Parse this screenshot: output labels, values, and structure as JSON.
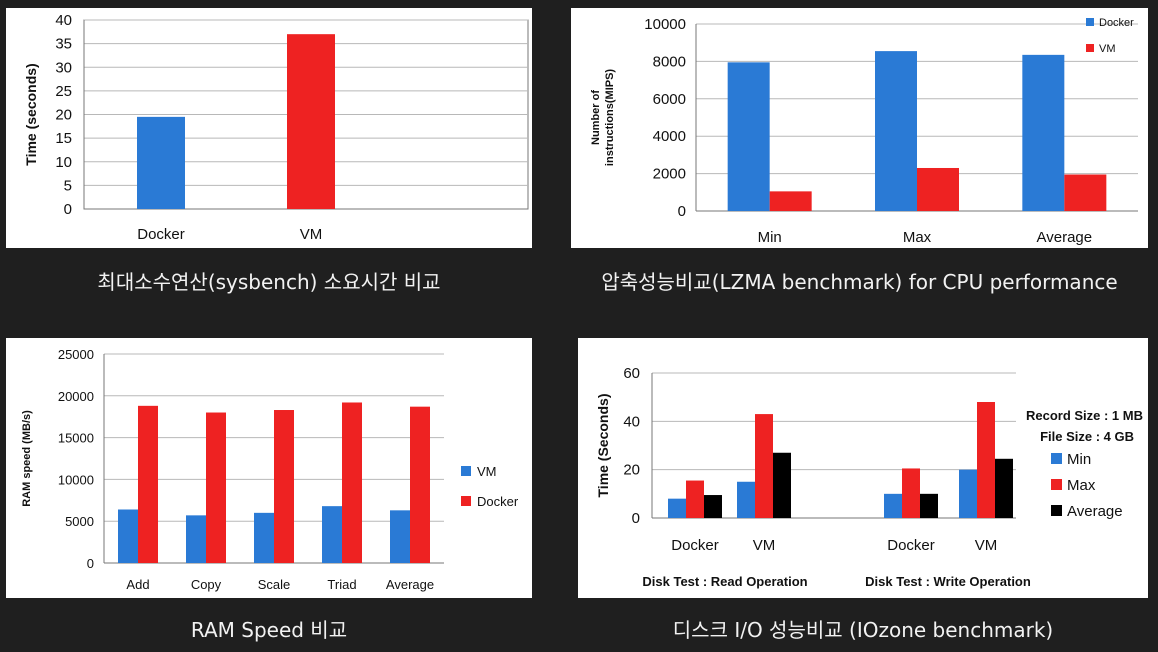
{
  "chart_data": [
    {
      "type": "bar",
      "title": "",
      "caption": "최대소수연산(sysbench) 소요시간 비교",
      "ylabel": "Time (seconds)",
      "xlabel": "",
      "ylim": [
        0,
        40
      ],
      "yticks": [
        "0",
        "5",
        "10",
        "15",
        "20",
        "25",
        "30",
        "35",
        "40"
      ],
      "categories": [
        "Docker",
        "VM"
      ],
      "values": [
        19.5,
        37
      ],
      "colors": [
        "#2a7ad5",
        "#ee2222"
      ],
      "grid": true
    },
    {
      "type": "bar",
      "title": "",
      "caption": "압축성능비교(LZMA benchmark) for CPU performance",
      "ylabel_lines": [
        "Number of",
        "instructions(MIPS)"
      ],
      "xlabel": "",
      "ylim": [
        0,
        10000
      ],
      "yticks": [
        "0",
        "2000",
        "4000",
        "6000",
        "8000",
        "10000"
      ],
      "categories": [
        "Min",
        "Max",
        "Average"
      ],
      "series": [
        {
          "name": "Docker",
          "color": "#2a7ad5",
          "values": [
            7950,
            8550,
            8350
          ]
        },
        {
          "name": "VM",
          "color": "#ee2222",
          "values": [
            1050,
            2300,
            1950
          ]
        }
      ],
      "legend_position": "top-right",
      "grid": true
    },
    {
      "type": "bar",
      "title": "",
      "caption": "RAM Speed 비교",
      "ylabel": "RAM speed (MB/s)",
      "xlabel": "",
      "ylim": [
        0,
        25000
      ],
      "yticks": [
        "0",
        "5000",
        "10000",
        "15000",
        "20000",
        "25000"
      ],
      "categories": [
        "Add",
        "Copy",
        "Scale",
        "Triad",
        "Average"
      ],
      "series": [
        {
          "name": "VM",
          "color": "#2a7ad5",
          "values": [
            6400,
            5700,
            6000,
            6800,
            6300
          ]
        },
        {
          "name": "Docker",
          "color": "#ee2222",
          "values": [
            18800,
            18000,
            18300,
            19200,
            18700
          ]
        }
      ],
      "legend_position": "right",
      "grid": true
    },
    {
      "type": "bar",
      "title": "",
      "caption": "디스크 I/O 성능비교 (IOzone benchmark)",
      "ylabel": "Time (Seconds)",
      "xlabel": "",
      "ylim": [
        0,
        60
      ],
      "yticks": [
        "0",
        "20",
        "40",
        "60"
      ],
      "groups": [
        {
          "label": "Disk Test : Read Operation",
          "categories": [
            "Docker",
            "VM"
          ]
        },
        {
          "label": "Disk Test : Write Operation",
          "categories": [
            "Docker",
            "VM"
          ]
        }
      ],
      "series": [
        {
          "name": "Min",
          "color": "#2a7ad5",
          "values": [
            8,
            15,
            10,
            20
          ]
        },
        {
          "name": "Max",
          "color": "#ee2222",
          "values": [
            15.5,
            43,
            20.5,
            48
          ]
        },
        {
          "name": "Average",
          "color": "#000000",
          "values": [
            9.5,
            27,
            10,
            24.5
          ]
        }
      ],
      "annotations": [
        "Record Size : 1 MB",
        "File Size : 4 GB"
      ],
      "legend_position": "right",
      "grid": true
    }
  ]
}
